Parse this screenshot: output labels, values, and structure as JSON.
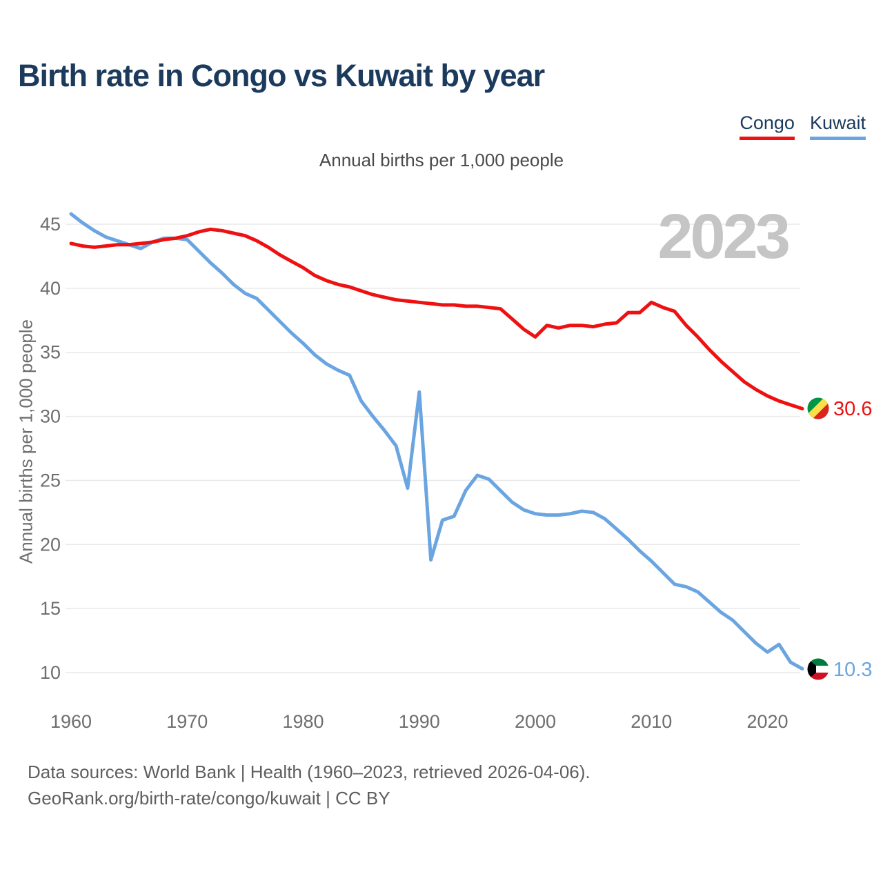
{
  "header": {
    "title": "Birth rate in Congo vs Kuwait by year",
    "legend_congo": "Congo",
    "legend_kuwait": "Kuwait"
  },
  "subtitle": "Annual births per 1,000 people",
  "watermark": "2023",
  "endpoints": {
    "congo_label": "30.6",
    "kuwait_label": "10.3"
  },
  "footer": {
    "line1": "Data sources: World Bank | Health (1960–2023, retrieved 2026-04-06).",
    "line2": "GeoRank.org/birth-rate/congo/kuwait | CC BY"
  },
  "colors": {
    "congo": "#ee1111",
    "kuwait": "#6aa5e1",
    "title_navy": "#1b3a5c",
    "gridline": "#e9e9e9",
    "watermark": "#c5c5c5",
    "axis_text": "#6e6e6e"
  },
  "chart_data": {
    "type": "line",
    "title": "Birth rate in Congo vs Kuwait by year",
    "subtitle": "Annual births per 1,000 people",
    "ylabel": "Annual births per 1,000 people",
    "xlabel": "",
    "grid": "horizontal",
    "legend_position": "top-right",
    "xlim": [
      1960,
      2023
    ],
    "ylim": [
      9.5,
      46.5
    ],
    "xticks": [
      1960,
      1970,
      1980,
      1990,
      2000,
      2010,
      2020
    ],
    "yticks": [
      45,
      40,
      35,
      30,
      25,
      20,
      15,
      10
    ],
    "x": [
      1960,
      1961,
      1962,
      1963,
      1964,
      1965,
      1966,
      1967,
      1968,
      1969,
      1970,
      1971,
      1972,
      1973,
      1974,
      1975,
      1976,
      1977,
      1978,
      1979,
      1980,
      1981,
      1982,
      1983,
      1984,
      1985,
      1986,
      1987,
      1988,
      1989,
      1990,
      1991,
      1992,
      1993,
      1994,
      1995,
      1996,
      1997,
      1998,
      1999,
      2000,
      2001,
      2002,
      2003,
      2004,
      2005,
      2006,
      2007,
      2008,
      2009,
      2010,
      2011,
      2012,
      2013,
      2014,
      2015,
      2016,
      2017,
      2018,
      2019,
      2020,
      2021,
      2022,
      2023
    ],
    "series": [
      {
        "name": "Congo",
        "color": "#ee1111",
        "end_label": "30.6",
        "end_value": 30.6,
        "values": [
          43.5,
          43.3,
          43.2,
          43.3,
          43.4,
          43.4,
          43.5,
          43.6,
          43.8,
          43.9,
          44.1,
          44.4,
          44.6,
          44.5,
          44.3,
          44.1,
          43.7,
          43.2,
          42.6,
          42.1,
          41.6,
          41.0,
          40.6,
          40.3,
          40.1,
          39.8,
          39.5,
          39.3,
          39.1,
          39.0,
          38.9,
          38.8,
          38.7,
          38.7,
          38.6,
          38.6,
          38.5,
          38.4,
          37.6,
          36.8,
          36.2,
          37.1,
          36.9,
          37.1,
          37.1,
          37.0,
          37.2,
          37.3,
          38.1,
          38.1,
          38.9,
          38.5,
          38.2,
          37.1,
          36.2,
          35.2,
          34.3,
          33.5,
          32.7,
          32.1,
          31.6,
          31.2,
          30.9,
          30.6
        ]
      },
      {
        "name": "Kuwait",
        "color": "#6aa5e1",
        "end_label": "10.3",
        "end_value": 10.3,
        "values": [
          45.8,
          45.1,
          44.5,
          44.0,
          43.7,
          43.4,
          43.1,
          43.6,
          43.9,
          43.9,
          43.8,
          42.9,
          42.0,
          41.2,
          40.3,
          39.6,
          39.2,
          38.3,
          37.4,
          36.5,
          35.7,
          34.8,
          34.1,
          33.6,
          33.2,
          31.2,
          30.0,
          28.9,
          27.7,
          24.4,
          31.9,
          18.8,
          21.9,
          22.2,
          24.2,
          25.4,
          25.1,
          24.2,
          23.3,
          22.7,
          22.4,
          22.3,
          22.3,
          22.4,
          22.6,
          22.5,
          22.0,
          21.2,
          20.4,
          19.5,
          18.7,
          17.8,
          16.9,
          16.7,
          16.3,
          15.5,
          14.7,
          14.1,
          13.2,
          12.3,
          11.6,
          12.2,
          10.8,
          10.3
        ]
      }
    ]
  }
}
